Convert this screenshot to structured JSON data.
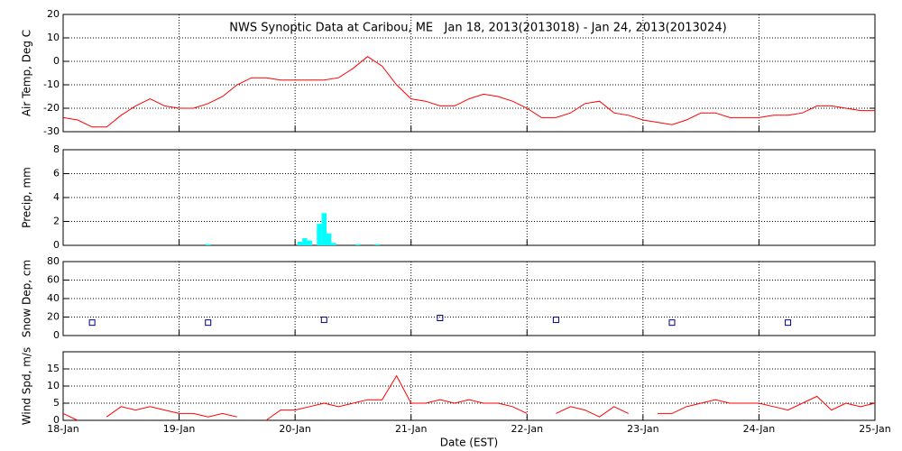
{
  "chart_data": [
    {
      "type": "line",
      "title": "NWS Synoptic Data at Caribou, ME   Jan 18, 2013(2013018) - Jan 24, 2013(2013024)",
      "y_label": "Air Temp, Deg C",
      "x": [
        0,
        3,
        6,
        9,
        12,
        15,
        18,
        21,
        24,
        27,
        30,
        33,
        36,
        39,
        42,
        45,
        48,
        51,
        54,
        57,
        60,
        63,
        66,
        69,
        72,
        75,
        78,
        81,
        84,
        87,
        90,
        93,
        96,
        99,
        102,
        105,
        108,
        111,
        114,
        117,
        120,
        123,
        126,
        129,
        132,
        135,
        138,
        141,
        144,
        147,
        150,
        153,
        156,
        159,
        162,
        165,
        168
      ],
      "values": [
        -24,
        -25,
        -28,
        -28,
        -23,
        -19,
        -16,
        -19,
        -20,
        -20,
        -18,
        -15,
        -10,
        -7,
        -7,
        -8,
        -8,
        -8,
        -8,
        -7,
        -3,
        2,
        -2,
        -10,
        -16,
        -17,
        -19,
        -19,
        -16,
        -14,
        -15,
        -17,
        -20,
        -24,
        -24,
        -22,
        -18,
        -17,
        -22,
        -23,
        -25,
        -26,
        -27,
        -25,
        -22,
        -22,
        -24,
        -24,
        -24,
        -23,
        -23,
        -22,
        -19,
        -19,
        -20,
        -21,
        -21
      ],
      "color": "#ff0000",
      "xlim": [
        0,
        168
      ],
      "xticks": [
        24,
        48,
        72,
        96,
        120,
        144
      ],
      "ylim": [
        -30,
        20
      ],
      "yticks": [
        -30,
        -20,
        -10,
        0,
        10,
        20
      ],
      "grid": true
    },
    {
      "type": "bar",
      "y_label": "Precip, mm",
      "x": [
        30,
        49,
        50,
        51,
        53,
        54,
        55,
        56,
        61,
        65
      ],
      "values": [
        0.1,
        0.3,
        0.6,
        0.4,
        1.8,
        2.7,
        1.0,
        0.2,
        0.1,
        0.1
      ],
      "color": "#00ffff",
      "xlim": [
        0,
        168
      ],
      "xticks": [
        24,
        48,
        72,
        96,
        120,
        144
      ],
      "ylim": [
        0,
        8
      ],
      "yticks": [
        0,
        2,
        4,
        6,
        8
      ],
      "grid": true
    },
    {
      "type": "scatter",
      "y_label": "Snow Dep, cm",
      "x": [
        6,
        30,
        54,
        78,
        102,
        126,
        150
      ],
      "values": [
        14,
        14,
        17,
        19,
        17,
        14,
        14
      ],
      "color": "#000080",
      "xlim": [
        0,
        168
      ],
      "xticks": [
        24,
        48,
        72,
        96,
        120,
        144
      ],
      "ylim": [
        0,
        80
      ],
      "yticks": [
        0,
        20,
        40,
        60,
        80
      ],
      "grid": true
    },
    {
      "type": "line",
      "y_label": "Wind Spd, m/s",
      "x_label": "Date (EST)",
      "x": [
        0,
        3,
        6,
        9,
        12,
        15,
        18,
        21,
        24,
        27,
        30,
        33,
        36,
        39,
        42,
        45,
        48,
        51,
        54,
        57,
        60,
        63,
        66,
        69,
        72,
        75,
        78,
        81,
        84,
        87,
        90,
        93,
        96,
        99,
        102,
        105,
        108,
        111,
        114,
        117,
        120,
        123,
        126,
        129,
        132,
        135,
        138,
        141,
        144,
        147,
        150,
        153,
        156,
        159,
        162,
        165,
        168
      ],
      "values": [
        2,
        0,
        null,
        1,
        4,
        3,
        4,
        3,
        2,
        2,
        1,
        2,
        1,
        null,
        0,
        3,
        3,
        4,
        5,
        4,
        5,
        6,
        6,
        13,
        5,
        5,
        6,
        5,
        6,
        5,
        5,
        4,
        2,
        null,
        2,
        4,
        3,
        1,
        4,
        2,
        null,
        2,
        2,
        4,
        5,
        6,
        5,
        5,
        5,
        4,
        3,
        5,
        7,
        3,
        5,
        4,
        5
      ],
      "color": "#ff0000",
      "xlim": [
        0,
        168
      ],
      "xticks": [
        {
          "value": 0,
          "label": "18-Jan"
        },
        {
          "value": 24,
          "label": "19-Jan"
        },
        {
          "value": 48,
          "label": "20-Jan"
        },
        {
          "value": 72,
          "label": "21-Jan"
        },
        {
          "value": 96,
          "label": "22-Jan"
        },
        {
          "value": 120,
          "label": "23-Jan"
        },
        {
          "value": 144,
          "label": "24-Jan"
        },
        {
          "value": 168,
          "label": "25-Jan"
        }
      ],
      "ylim": [
        0,
        20
      ],
      "yticks": [
        0,
        5,
        10,
        15
      ],
      "grid": true
    }
  ]
}
